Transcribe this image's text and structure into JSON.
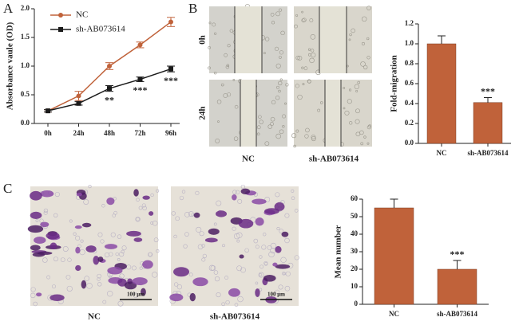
{
  "panel_labels": [
    "A",
    "B",
    "C"
  ],
  "panel_b_images": {
    "row_labels": [
      "0h",
      "24h"
    ],
    "column_labels": [
      "NC",
      "sh-AB073614"
    ]
  },
  "panel_c_images": {
    "labels": [
      "NC",
      "sh-AB073614"
    ],
    "scale_bars": [
      "100 μm",
      "100 μm"
    ]
  },
  "chart_data": [
    {
      "type": "line",
      "y_label": "Absorbance vaule (OD)",
      "categories": [
        "0h",
        "24h",
        "48h",
        "72h",
        "96h"
      ],
      "series": [
        {
          "name": "NC",
          "color": "#c0623a",
          "values": [
            0.22,
            0.48,
            1.0,
            1.37,
            1.77
          ],
          "errors": [
            0.02,
            0.08,
            0.06,
            0.05,
            0.08
          ]
        },
        {
          "name": "sh-AB073614",
          "color": "#1a1a1a",
          "values": [
            0.22,
            0.35,
            0.61,
            0.77,
            0.95
          ],
          "errors": [
            0.02,
            0.03,
            0.05,
            0.04,
            0.05
          ]
        }
      ],
      "annotations": [
        {
          "x": "48h",
          "text": "**"
        },
        {
          "x": "72h",
          "text": "***"
        },
        {
          "x": "96h",
          "text": "***"
        }
      ],
      "ylim": [
        0,
        2
      ],
      "yticks": [
        {
          "value": 0,
          "label": "0.0"
        },
        {
          "value": 0.5,
          "label": "0.5"
        },
        {
          "value": 1,
          "label": "1.0"
        },
        {
          "value": 1.5,
          "label": "1.5"
        },
        {
          "value": 2,
          "label": "2.0"
        }
      ],
      "legend": "upper left"
    },
    {
      "type": "bar",
      "y_label": "Fold-migration",
      "categories": [
        "NC",
        "sh-AB073614"
      ],
      "values": [
        1.0,
        0.41
      ],
      "errors": [
        0.08,
        0.05
      ],
      "color": "#c0623a",
      "annotations": [
        {
          "x": "sh-AB073614",
          "text": "***"
        }
      ],
      "ylim": [
        0,
        1.2
      ],
      "yticks": [
        {
          "value": 0,
          "label": "0.0"
        },
        {
          "value": 0.2,
          "label": "0.2"
        },
        {
          "value": 0.4,
          "label": "0.4"
        },
        {
          "value": 0.6,
          "label": "0.6"
        },
        {
          "value": 0.8,
          "label": "0.8"
        },
        {
          "value": 1,
          "label": "1.0"
        },
        {
          "value": 1.2,
          "label": "1.2"
        }
      ]
    },
    {
      "type": "bar",
      "y_label": "Mean number",
      "categories": [
        "NC",
        "sh-AB073614"
      ],
      "values": [
        55,
        20
      ],
      "errors": [
        5,
        5
      ],
      "color": "#c0623a",
      "annotations": [
        {
          "x": "sh-AB073614",
          "text": "***"
        }
      ],
      "ylim": [
        0,
        60
      ],
      "yticks": [
        0,
        10,
        20,
        30,
        40,
        50,
        60
      ]
    }
  ]
}
